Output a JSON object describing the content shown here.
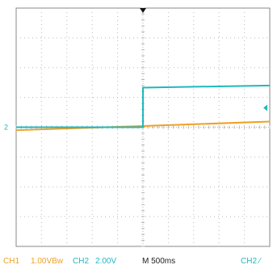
{
  "chart_data": {
    "type": "line",
    "title": "",
    "xlabel": "",
    "ylabel": "",
    "grid": true,
    "x_divisions": 10,
    "y_divisions": 8,
    "x": [
      -5,
      0,
      5
    ],
    "series": [
      {
        "values": [
          -0.1,
          0.04,
          0.19
        ]
      },
      {
        "values": [
          0.0,
          1.33,
          1.4
        ]
      }
    ],
    "ch2_step_division": 0
  },
  "status": {
    "ch1_label": "CH1",
    "ch1_scale": "1.00VBw",
    "ch2_label": "CH2",
    "ch2_scale": "2.00V",
    "timebase": "M 500ms",
    "trigger_source": "CH2 ∕",
    "ch2_ground_marker": "2"
  },
  "colors": {
    "ch1": "#f0a020",
    "ch2": "#20b8c0",
    "grid": "#b9b9b9",
    "frame": "#888888",
    "background": "#ffffff",
    "trigger_marker": "#111111"
  }
}
